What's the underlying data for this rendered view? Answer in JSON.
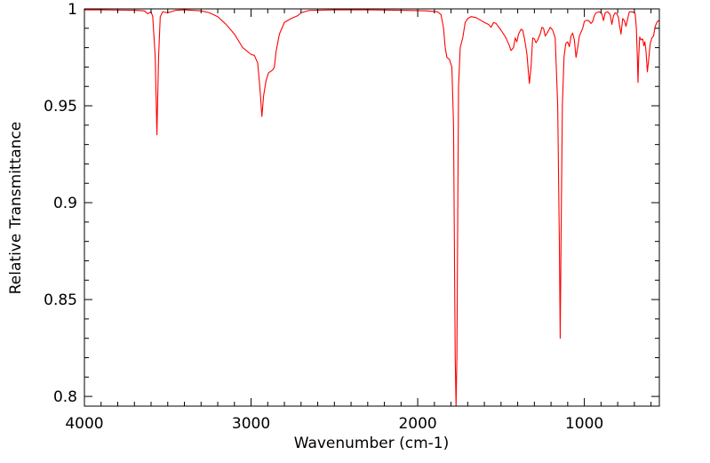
{
  "chart_data": {
    "type": "line",
    "title": "",
    "xlabel": "Wavenumber (cm-1)",
    "ylabel": "Relative Transmittance",
    "xlim": [
      4000,
      550
    ],
    "ylim": [
      0.795,
      1.0
    ],
    "x_reversed": true,
    "grid": false,
    "legend": "none",
    "x_ticks": [
      4000,
      3000,
      2000,
      1000
    ],
    "x_tick_labels": [
      "4000",
      "3000",
      "2000",
      "1000"
    ],
    "y_ticks": [
      0.8,
      0.85,
      0.9,
      0.95,
      1.0
    ],
    "y_tick_labels": [
      "0.8",
      "0.85",
      "0.9",
      "0.95",
      "1"
    ],
    "series": [
      {
        "color": "#ff0000",
        "points": [
          [
            4000,
            0.9995
          ],
          [
            3900,
            0.9995
          ],
          [
            3700,
            0.9993
          ],
          [
            3640,
            0.999
          ],
          [
            3620,
            0.9975
          ],
          [
            3600,
            0.9985
          ],
          [
            3590,
            0.996
          ],
          [
            3575,
            0.975
          ],
          [
            3565,
            0.935
          ],
          [
            3555,
            0.975
          ],
          [
            3545,
            0.996
          ],
          [
            3530,
            0.9985
          ],
          [
            3500,
            0.998
          ],
          [
            3450,
            0.9993
          ],
          [
            3400,
            0.9995
          ],
          [
            3300,
            0.999
          ],
          [
            3250,
            0.998
          ],
          [
            3200,
            0.996
          ],
          [
            3150,
            0.992
          ],
          [
            3100,
            0.987
          ],
          [
            3050,
            0.98
          ],
          [
            3000,
            0.9765
          ],
          [
            2980,
            0.976
          ],
          [
            2960,
            0.972
          ],
          [
            2945,
            0.957
          ],
          [
            2935,
            0.9445
          ],
          [
            2925,
            0.955
          ],
          [
            2910,
            0.963
          ],
          [
            2895,
            0.967
          ],
          [
            2870,
            0.9685
          ],
          [
            2860,
            0.97
          ],
          [
            2850,
            0.978
          ],
          [
            2830,
            0.987
          ],
          [
            2800,
            0.993
          ],
          [
            2760,
            0.995
          ],
          [
            2720,
            0.9965
          ],
          [
            2700,
            0.998
          ],
          [
            2650,
            0.9992
          ],
          [
            2500,
            0.9995
          ],
          [
            2300,
            0.9995
          ],
          [
            2100,
            0.9993
          ],
          [
            1950,
            0.999
          ],
          [
            1880,
            0.9985
          ],
          [
            1860,
            0.997
          ],
          [
            1845,
            0.99
          ],
          [
            1835,
            0.98
          ],
          [
            1825,
            0.975
          ],
          [
            1810,
            0.974
          ],
          [
            1795,
            0.97
          ],
          [
            1785,
            0.94
          ],
          [
            1775,
            0.82
          ],
          [
            1770,
            0.795
          ],
          [
            1765,
            0.82
          ],
          [
            1755,
            0.96
          ],
          [
            1745,
            0.98
          ],
          [
            1730,
            0.985
          ],
          [
            1715,
            0.993
          ],
          [
            1700,
            0.995
          ],
          [
            1680,
            0.996
          ],
          [
            1650,
            0.9955
          ],
          [
            1620,
            0.994
          ],
          [
            1600,
            0.993
          ],
          [
            1575,
            0.992
          ],
          [
            1560,
            0.9905
          ],
          [
            1545,
            0.993
          ],
          [
            1530,
            0.9925
          ],
          [
            1500,
            0.989
          ],
          [
            1470,
            0.985
          ],
          [
            1450,
            0.981
          ],
          [
            1440,
            0.9785
          ],
          [
            1425,
            0.98
          ],
          [
            1415,
            0.985
          ],
          [
            1405,
            0.983
          ],
          [
            1395,
            0.987
          ],
          [
            1380,
            0.9895
          ],
          [
            1370,
            0.989
          ],
          [
            1360,
            0.985
          ],
          [
            1345,
            0.977
          ],
          [
            1330,
            0.9615
          ],
          [
            1320,
            0.97
          ],
          [
            1310,
            0.985
          ],
          [
            1300,
            0.9845
          ],
          [
            1290,
            0.9825
          ],
          [
            1280,
            0.984
          ],
          [
            1265,
            0.987
          ],
          [
            1255,
            0.9905
          ],
          [
            1245,
            0.99
          ],
          [
            1235,
            0.986
          ],
          [
            1220,
            0.988
          ],
          [
            1205,
            0.9905
          ],
          [
            1190,
            0.989
          ],
          [
            1175,
            0.985
          ],
          [
            1160,
            0.95
          ],
          [
            1150,
            0.88
          ],
          [
            1145,
            0.83
          ],
          [
            1140,
            0.88
          ],
          [
            1132,
            0.95
          ],
          [
            1122,
            0.975
          ],
          [
            1112,
            0.982
          ],
          [
            1100,
            0.983
          ],
          [
            1090,
            0.9805
          ],
          [
            1080,
            0.986
          ],
          [
            1070,
            0.9875
          ],
          [
            1060,
            0.984
          ],
          [
            1050,
            0.975
          ],
          [
            1040,
            0.98
          ],
          [
            1030,
            0.986
          ],
          [
            1010,
            0.99
          ],
          [
            1000,
            0.9935
          ],
          [
            990,
            0.994
          ],
          [
            975,
            0.994
          ],
          [
            960,
            0.9925
          ],
          [
            950,
            0.9935
          ],
          [
            940,
            0.9965
          ],
          [
            930,
            0.998
          ],
          [
            910,
            0.9985
          ],
          [
            895,
            0.9975
          ],
          [
            885,
            0.994
          ],
          [
            875,
            0.998
          ],
          [
            860,
            0.9985
          ],
          [
            845,
            0.997
          ],
          [
            835,
            0.992
          ],
          [
            825,
            0.9965
          ],
          [
            815,
            0.998
          ],
          [
            805,
            0.9975
          ],
          [
            795,
            0.9955
          ],
          [
            790,
            0.992
          ],
          [
            780,
            0.987
          ],
          [
            770,
            0.995
          ],
          [
            760,
            0.994
          ],
          [
            750,
            0.991
          ],
          [
            740,
            0.995
          ],
          [
            730,
            0.9985
          ],
          [
            715,
            0.9985
          ],
          [
            700,
            0.998
          ],
          [
            695,
            0.9975
          ],
          [
            688,
            0.99
          ],
          [
            682,
            0.975
          ],
          [
            678,
            0.962
          ],
          [
            674,
            0.975
          ],
          [
            668,
            0.9855
          ],
          [
            660,
            0.984
          ],
          [
            650,
            0.9845
          ],
          [
            643,
            0.981
          ],
          [
            637,
            0.983
          ],
          [
            630,
            0.978
          ],
          [
            622,
            0.9675
          ],
          [
            615,
            0.973
          ],
          [
            605,
            0.982
          ],
          [
            595,
            0.985
          ],
          [
            585,
            0.986
          ],
          [
            575,
            0.991
          ],
          [
            562,
            0.9935
          ],
          [
            550,
            0.994
          ]
        ]
      }
    ]
  }
}
